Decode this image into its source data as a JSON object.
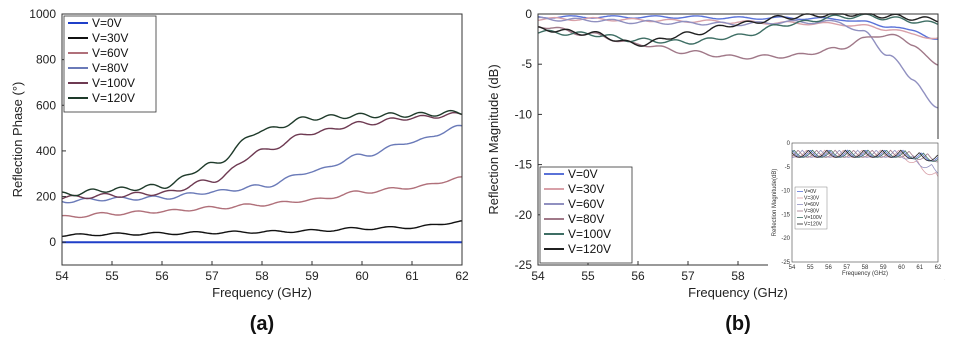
{
  "chart_data": [
    {
      "type": "line",
      "panel_label": "(a)",
      "xlabel": "Frequency (GHz)",
      "ylabel": "Reflection Phase (°)",
      "xlim": [
        54,
        62
      ],
      "ylim": [
        -100,
        1000
      ],
      "xticks": [
        "54",
        "55",
        "56",
        "57",
        "58",
        "59",
        "60",
        "61",
        "62"
      ],
      "yticks": [
        "0",
        "200",
        "400",
        "600",
        "800",
        "1000"
      ],
      "grid": false,
      "legend_position": "top-left",
      "x": [
        54,
        55,
        56,
        57,
        58,
        59,
        60,
        61,
        62
      ],
      "series": [
        {
          "name": "V=0V",
          "color": "#1f3fc8",
          "values": [
            0,
            0,
            0,
            0,
            0,
            0,
            0,
            0,
            0
          ]
        },
        {
          "name": "V=30V",
          "color": "#111111",
          "values": [
            30,
            35,
            38,
            42,
            45,
            50,
            60,
            65,
            90
          ]
        },
        {
          "name": "V=60V",
          "color": "#b0707a",
          "values": [
            110,
            125,
            135,
            150,
            165,
            185,
            220,
            240,
            280
          ]
        },
        {
          "name": "V=80V",
          "color": "#6a7ab8",
          "values": [
            180,
            190,
            195,
            220,
            245,
            310,
            380,
            440,
            505
          ]
        },
        {
          "name": "V=100V",
          "color": "#6e3a52",
          "values": [
            195,
            205,
            215,
            270,
            400,
            480,
            520,
            545,
            560
          ]
        },
        {
          "name": "V=120V",
          "color": "#1e3a2a",
          "values": [
            210,
            230,
            245,
            340,
            490,
            545,
            555,
            558,
            568
          ]
        }
      ]
    },
    {
      "type": "line",
      "panel_label": "(b)",
      "xlabel": "Frequency (GHz)",
      "ylabel": "Reflection Magnitude (dB)",
      "xlim": [
        54,
        62
      ],
      "ylim": [
        -25,
        0
      ],
      "xticks": [
        "54",
        "55",
        "56",
        "57",
        "58",
        "59",
        "60",
        "61",
        "62"
      ],
      "yticks": [
        "0",
        "-5",
        "-10",
        "-15",
        "-20",
        "-25"
      ],
      "grid": false,
      "legend_position": "bottom-left",
      "x": [
        54,
        55,
        56,
        57,
        58,
        59,
        60,
        60.5,
        61,
        61.5,
        62
      ],
      "series": [
        {
          "name": "V=0V",
          "color": "#5a72d8",
          "values": [
            -0.3,
            -0.3,
            -0.3,
            -0.3,
            -0.4,
            -0.4,
            -0.5,
            -0.8,
            -1.2,
            -1.7,
            -2.5
          ]
        },
        {
          "name": "V=30V",
          "color": "#d8a0a8",
          "values": [
            -0.5,
            -0.5,
            -0.6,
            -0.7,
            -0.8,
            -0.9,
            -1.0,
            -1.2,
            -1.5,
            -2.0,
            -2.5
          ]
        },
        {
          "name": "V=60V",
          "color": "#9090c0",
          "values": [
            -0.5,
            -0.6,
            -0.8,
            -0.9,
            -1.0,
            -0.8,
            -0.8,
            -1.8,
            -4.0,
            -6.5,
            -9.5
          ]
        },
        {
          "name": "V=80V",
          "color": "#a07888",
          "values": [
            -1.2,
            -2.0,
            -3.0,
            -3.8,
            -4.3,
            -4.2,
            -3.5,
            -2.5,
            -2.0,
            -3.0,
            -5.2
          ]
        },
        {
          "name": "V=100V",
          "color": "#3e6e64",
          "values": [
            -1.8,
            -2.0,
            -2.6,
            -2.8,
            -2.2,
            -1.0,
            -0.3,
            -0.2,
            -0.4,
            -0.7,
            -1.0
          ]
        },
        {
          "name": "V=120V",
          "color": "#202020",
          "values": [
            -1.5,
            -1.9,
            -3.0,
            -2.0,
            -1.0,
            -0.3,
            0,
            0,
            -0.2,
            -0.4,
            -0.6
          ]
        }
      ],
      "inset": {
        "xlabel": "Frequency (GHz)",
        "ylabel": "Reflection Magnitude(dB)",
        "xlim": [
          54,
          62
        ],
        "ylim": [
          -25,
          0
        ],
        "xticks": [
          "54",
          "55",
          "56",
          "57",
          "58",
          "59",
          "60",
          "61",
          "62"
        ],
        "yticks": [
          "0",
          "-5",
          "-10",
          "-15",
          "-20",
          "-25"
        ],
        "legend": [
          "V=0V",
          "V=30V",
          "V=60V",
          "V=80V",
          "V=100V",
          "V=120V"
        ]
      }
    }
  ]
}
